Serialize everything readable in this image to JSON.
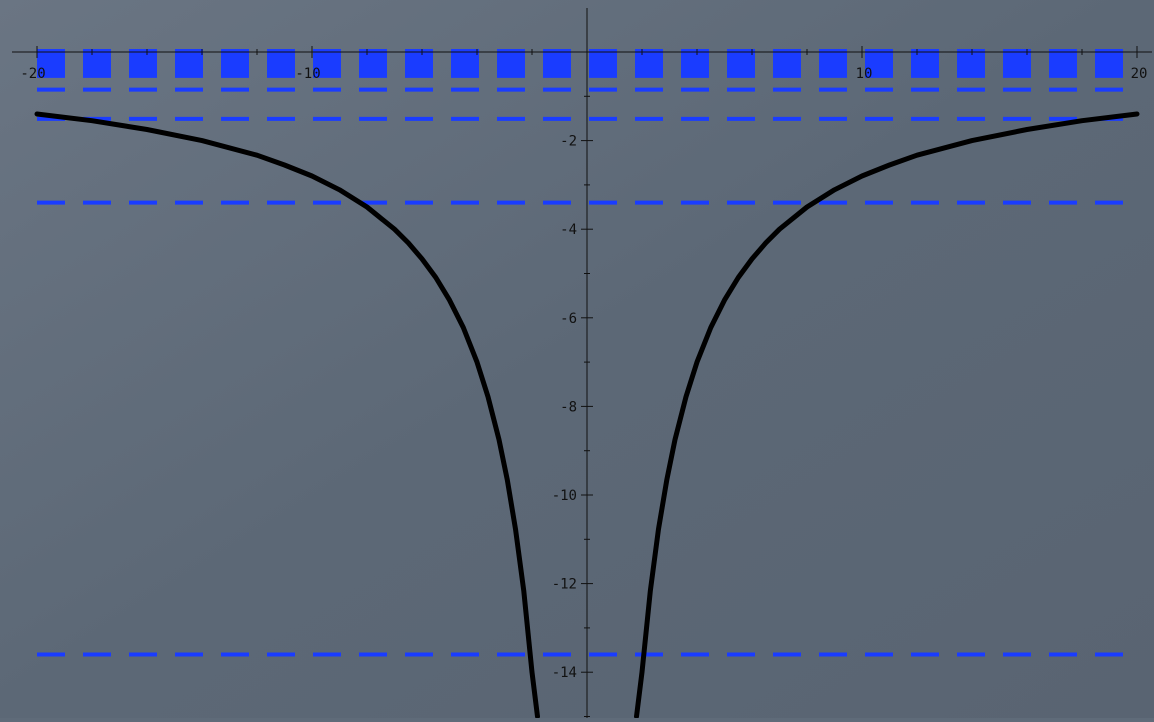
{
  "chart_data": {
    "type": "line",
    "title": "",
    "xlabel": "",
    "ylabel": "",
    "xlim": [
      -20,
      20
    ],
    "ylim": [
      -15,
      0.8
    ],
    "x_ticks": [
      -20,
      -10,
      10,
      20
    ],
    "x_tick_labels": [
      "-20",
      "-10",
      "10",
      "20"
    ],
    "y_ticks": [
      -2,
      -4,
      -6,
      -8,
      -10,
      -12,
      -14
    ],
    "y_tick_labels": [
      "-2",
      "-4",
      "-6",
      "-8",
      "-10",
      "-12",
      "-14"
    ],
    "grid": false,
    "series": [
      {
        "kind": "curve",
        "color": "#000000",
        "x": [
          -20,
          -18,
          -16,
          -14,
          -12,
          -11,
          -10,
          -9,
          -8,
          -7,
          -6.5,
          -6,
          -5.5,
          -5,
          -4.5,
          -4,
          -3.6,
          -3.2,
          -2.9,
          -2.6,
          -2.3,
          -2.0,
          -1.8
        ],
        "y": [
          -1.4,
          -1.55,
          -1.75,
          -2.0,
          -2.33,
          -2.55,
          -2.8,
          -3.11,
          -3.5,
          -4.0,
          -4.31,
          -4.67,
          -5.09,
          -5.6,
          -6.22,
          -7.0,
          -7.78,
          -8.75,
          -9.66,
          -10.77,
          -12.17,
          -14.0,
          -15.0
        ]
      },
      {
        "kind": "curve",
        "color": "#000000",
        "x": [
          1.8,
          2.0,
          2.3,
          2.6,
          2.9,
          3.2,
          3.6,
          4,
          4.5,
          5,
          5.5,
          6,
          6.5,
          7,
          8,
          9,
          10,
          11,
          12,
          14,
          16,
          18,
          20
        ],
        "y": [
          -15.0,
          -14.0,
          -12.17,
          -10.77,
          -9.66,
          -8.75,
          -7.78,
          -7.0,
          -6.22,
          -5.6,
          -5.09,
          -4.67,
          -4.31,
          -4.0,
          -3.5,
          -3.11,
          -2.8,
          -2.55,
          -2.33,
          -2.0,
          -1.75,
          -1.55,
          -1.4
        ]
      },
      {
        "kind": "dashed-levels",
        "color": "#1a3cff",
        "levels": [
          -13.6,
          -3.4,
          -1.51,
          -0.85,
          -0.54,
          -0.38,
          -0.28,
          -0.21,
          -0.17,
          -0.14,
          -0.11,
          -0.09
        ]
      }
    ]
  }
}
